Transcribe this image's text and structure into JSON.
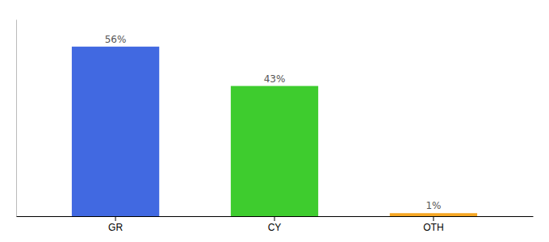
{
  "chart_data": {
    "type": "bar",
    "categories": [
      "GR",
      "CY",
      "OTH"
    ],
    "values": [
      56,
      43,
      1
    ],
    "value_labels": [
      "56%",
      "43%",
      "1%"
    ],
    "colors": [
      "#4169e1",
      "#3ecc2e",
      "#f5a623"
    ],
    "ylim": [
      0,
      65
    ],
    "data_labels": true,
    "tick_labels": "x",
    "grid": false
  }
}
